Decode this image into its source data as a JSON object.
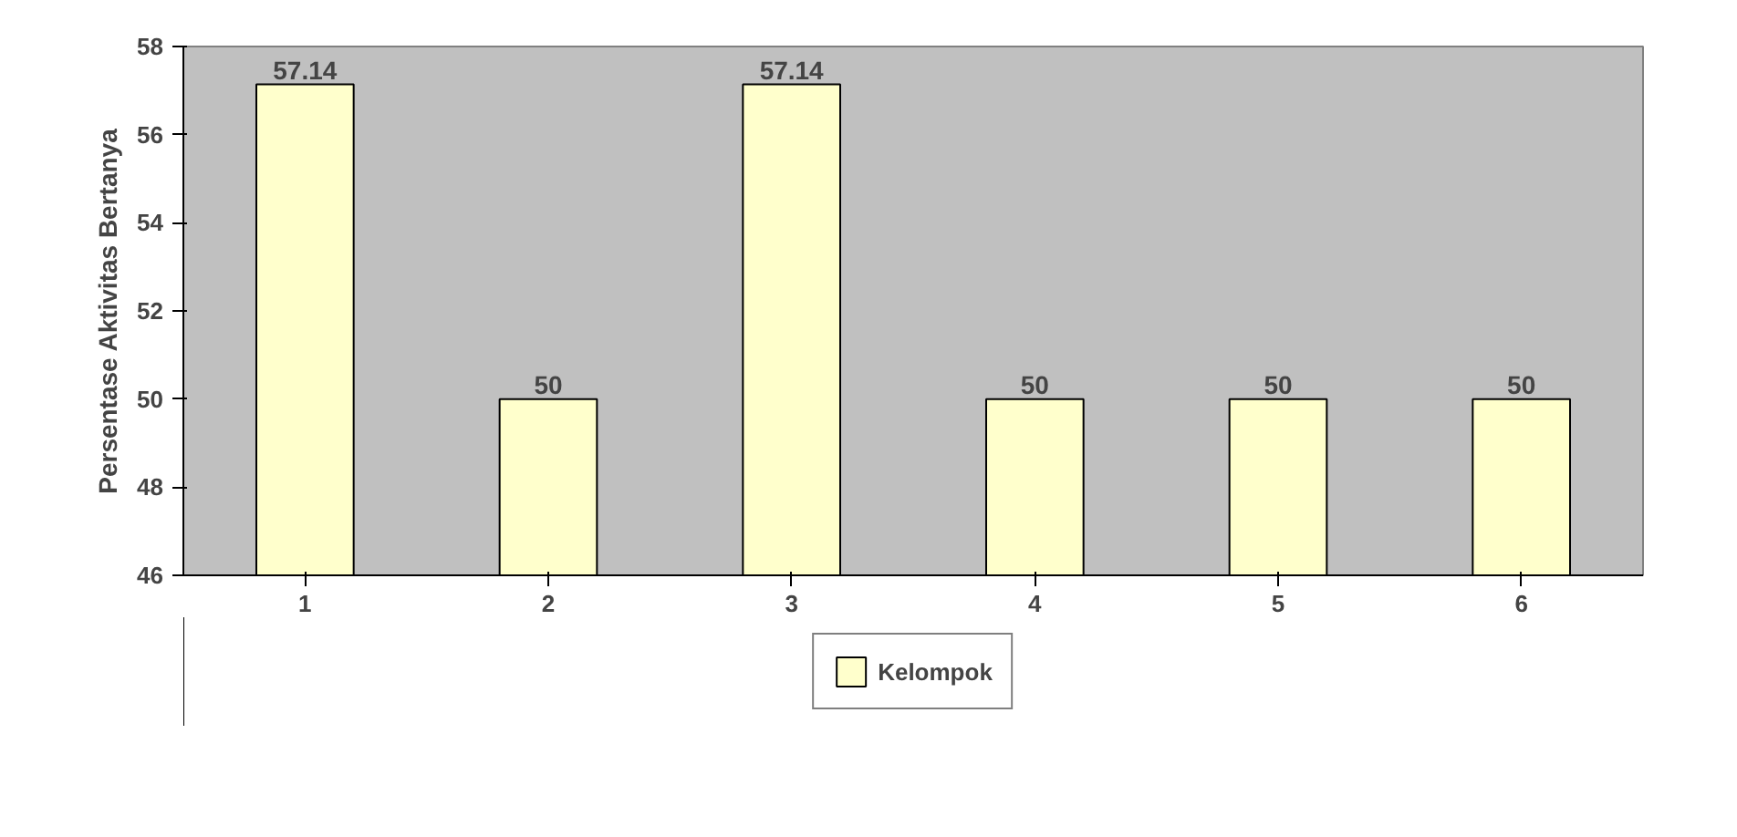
{
  "chart_data": {
    "type": "bar",
    "ylabel": "Persentase Aktivitas Bertanya",
    "categories": [
      "1",
      "2",
      "3",
      "4",
      "5",
      "6"
    ],
    "series": [
      {
        "name": "Kelompok",
        "color": "#ffffcc",
        "values": [
          57.14,
          50,
          57.14,
          50,
          50,
          50
        ]
      }
    ],
    "ylim": [
      46,
      58
    ],
    "yticks": [
      46,
      48,
      50,
      52,
      54,
      56,
      58
    ],
    "data_labels": true,
    "legend": "bottom",
    "grid": false
  }
}
